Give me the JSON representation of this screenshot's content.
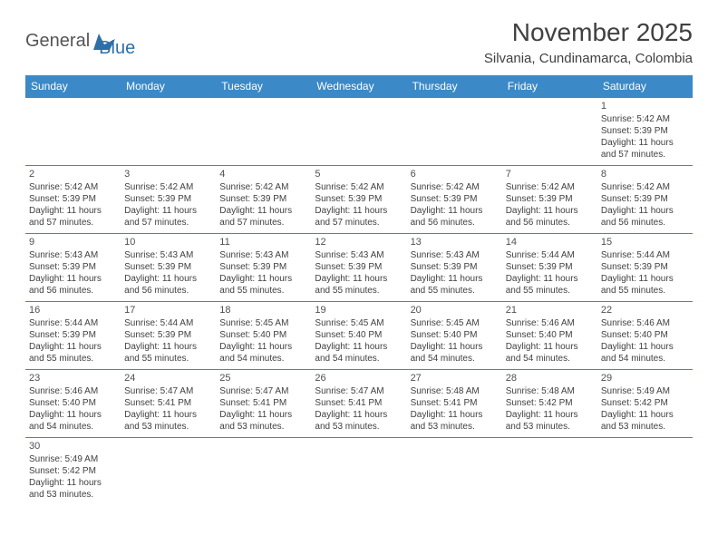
{
  "logo": {
    "text_general": "General",
    "text_blue": "Blue"
  },
  "header": {
    "month_title": "November 2025",
    "location": "Silvania, Cundinamarca, Colombia"
  },
  "colors": {
    "header_bg": "#3b89c7",
    "header_text": "#ffffff",
    "border": "#3b89c7",
    "body_text": "#404040"
  },
  "day_names": [
    "Sunday",
    "Monday",
    "Tuesday",
    "Wednesday",
    "Thursday",
    "Friday",
    "Saturday"
  ],
  "weeks": [
    [
      null,
      null,
      null,
      null,
      null,
      null,
      {
        "n": "1",
        "sr": "Sunrise: 5:42 AM",
        "ss": "Sunset: 5:39 PM",
        "dl": "Daylight: 11 hours and 57 minutes."
      }
    ],
    [
      {
        "n": "2",
        "sr": "Sunrise: 5:42 AM",
        "ss": "Sunset: 5:39 PM",
        "dl": "Daylight: 11 hours and 57 minutes."
      },
      {
        "n": "3",
        "sr": "Sunrise: 5:42 AM",
        "ss": "Sunset: 5:39 PM",
        "dl": "Daylight: 11 hours and 57 minutes."
      },
      {
        "n": "4",
        "sr": "Sunrise: 5:42 AM",
        "ss": "Sunset: 5:39 PM",
        "dl": "Daylight: 11 hours and 57 minutes."
      },
      {
        "n": "5",
        "sr": "Sunrise: 5:42 AM",
        "ss": "Sunset: 5:39 PM",
        "dl": "Daylight: 11 hours and 57 minutes."
      },
      {
        "n": "6",
        "sr": "Sunrise: 5:42 AM",
        "ss": "Sunset: 5:39 PM",
        "dl": "Daylight: 11 hours and 56 minutes."
      },
      {
        "n": "7",
        "sr": "Sunrise: 5:42 AM",
        "ss": "Sunset: 5:39 PM",
        "dl": "Daylight: 11 hours and 56 minutes."
      },
      {
        "n": "8",
        "sr": "Sunrise: 5:42 AM",
        "ss": "Sunset: 5:39 PM",
        "dl": "Daylight: 11 hours and 56 minutes."
      }
    ],
    [
      {
        "n": "9",
        "sr": "Sunrise: 5:43 AM",
        "ss": "Sunset: 5:39 PM",
        "dl": "Daylight: 11 hours and 56 minutes."
      },
      {
        "n": "10",
        "sr": "Sunrise: 5:43 AM",
        "ss": "Sunset: 5:39 PM",
        "dl": "Daylight: 11 hours and 56 minutes."
      },
      {
        "n": "11",
        "sr": "Sunrise: 5:43 AM",
        "ss": "Sunset: 5:39 PM",
        "dl": "Daylight: 11 hours and 55 minutes."
      },
      {
        "n": "12",
        "sr": "Sunrise: 5:43 AM",
        "ss": "Sunset: 5:39 PM",
        "dl": "Daylight: 11 hours and 55 minutes."
      },
      {
        "n": "13",
        "sr": "Sunrise: 5:43 AM",
        "ss": "Sunset: 5:39 PM",
        "dl": "Daylight: 11 hours and 55 minutes."
      },
      {
        "n": "14",
        "sr": "Sunrise: 5:44 AM",
        "ss": "Sunset: 5:39 PM",
        "dl": "Daylight: 11 hours and 55 minutes."
      },
      {
        "n": "15",
        "sr": "Sunrise: 5:44 AM",
        "ss": "Sunset: 5:39 PM",
        "dl": "Daylight: 11 hours and 55 minutes."
      }
    ],
    [
      {
        "n": "16",
        "sr": "Sunrise: 5:44 AM",
        "ss": "Sunset: 5:39 PM",
        "dl": "Daylight: 11 hours and 55 minutes."
      },
      {
        "n": "17",
        "sr": "Sunrise: 5:44 AM",
        "ss": "Sunset: 5:39 PM",
        "dl": "Daylight: 11 hours and 55 minutes."
      },
      {
        "n": "18",
        "sr": "Sunrise: 5:45 AM",
        "ss": "Sunset: 5:40 PM",
        "dl": "Daylight: 11 hours and 54 minutes."
      },
      {
        "n": "19",
        "sr": "Sunrise: 5:45 AM",
        "ss": "Sunset: 5:40 PM",
        "dl": "Daylight: 11 hours and 54 minutes."
      },
      {
        "n": "20",
        "sr": "Sunrise: 5:45 AM",
        "ss": "Sunset: 5:40 PM",
        "dl": "Daylight: 11 hours and 54 minutes."
      },
      {
        "n": "21",
        "sr": "Sunrise: 5:46 AM",
        "ss": "Sunset: 5:40 PM",
        "dl": "Daylight: 11 hours and 54 minutes."
      },
      {
        "n": "22",
        "sr": "Sunrise: 5:46 AM",
        "ss": "Sunset: 5:40 PM",
        "dl": "Daylight: 11 hours and 54 minutes."
      }
    ],
    [
      {
        "n": "23",
        "sr": "Sunrise: 5:46 AM",
        "ss": "Sunset: 5:40 PM",
        "dl": "Daylight: 11 hours and 54 minutes."
      },
      {
        "n": "24",
        "sr": "Sunrise: 5:47 AM",
        "ss": "Sunset: 5:41 PM",
        "dl": "Daylight: 11 hours and 53 minutes."
      },
      {
        "n": "25",
        "sr": "Sunrise: 5:47 AM",
        "ss": "Sunset: 5:41 PM",
        "dl": "Daylight: 11 hours and 53 minutes."
      },
      {
        "n": "26",
        "sr": "Sunrise: 5:47 AM",
        "ss": "Sunset: 5:41 PM",
        "dl": "Daylight: 11 hours and 53 minutes."
      },
      {
        "n": "27",
        "sr": "Sunrise: 5:48 AM",
        "ss": "Sunset: 5:41 PM",
        "dl": "Daylight: 11 hours and 53 minutes."
      },
      {
        "n": "28",
        "sr": "Sunrise: 5:48 AM",
        "ss": "Sunset: 5:42 PM",
        "dl": "Daylight: 11 hours and 53 minutes."
      },
      {
        "n": "29",
        "sr": "Sunrise: 5:49 AM",
        "ss": "Sunset: 5:42 PM",
        "dl": "Daylight: 11 hours and 53 minutes."
      }
    ],
    [
      {
        "n": "30",
        "sr": "Sunrise: 5:49 AM",
        "ss": "Sunset: 5:42 PM",
        "dl": "Daylight: 11 hours and 53 minutes."
      },
      null,
      null,
      null,
      null,
      null,
      null
    ]
  ]
}
